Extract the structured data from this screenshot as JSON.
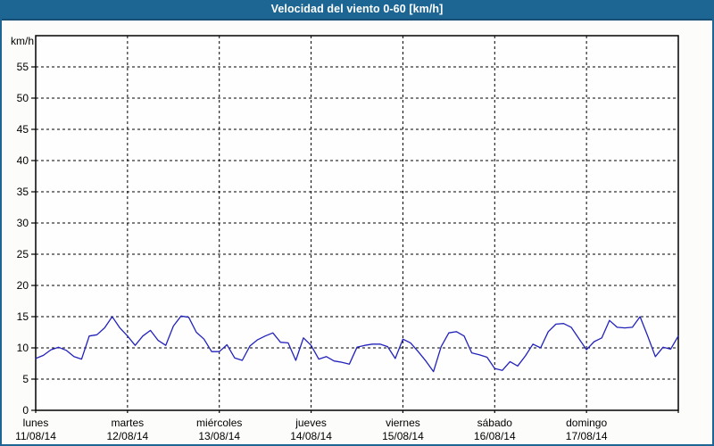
{
  "window": {
    "title": "Velocidad del viento 0-60 [km/h]"
  },
  "colors": {
    "titlebar_bg": "#1d6694",
    "titlebar_edge": "#164e76",
    "titlebar_text": "#ffffff",
    "window_border": "#1d6694",
    "page_bg": "#fcfdfb",
    "plot_bg": "#fdfefd",
    "grid": "#000000",
    "axis": "#000000",
    "text": "#000000",
    "series_line": "#2222bb"
  },
  "chart_data": {
    "type": "line",
    "title": "Velocidad del viento 0-60 [km/h]",
    "ylabel": "km/h",
    "ylim": [
      0,
      60
    ],
    "ytick_step": 5,
    "grid_style": "dashed",
    "legend": "none",
    "x_axis": {
      "days": [
        {
          "name": "lunes",
          "date": "11/08/14"
        },
        {
          "name": "martes",
          "date": "12/08/14"
        },
        {
          "name": "miércoles",
          "date": "13/08/14"
        },
        {
          "name": "jueves",
          "date": "14/08/14"
        },
        {
          "name": "viernes",
          "date": "15/08/14"
        },
        {
          "name": "sábado",
          "date": "16/08/14"
        },
        {
          "name": "domingo",
          "date": "17/08/14"
        }
      ]
    },
    "series": [
      {
        "name": "Velocidad del viento",
        "unit": "km/h",
        "sample_interval_hours": 2,
        "start": "lunes 11/08/14 00:00",
        "values": [
          8.3,
          8.8,
          9.7,
          10.1,
          9.6,
          8.6,
          8.2,
          11.9,
          12.1,
          13.2,
          15.0,
          13.2,
          11.9,
          10.4,
          11.9,
          12.8,
          11.2,
          10.4,
          13.5,
          15.1,
          14.9,
          12.5,
          11.4,
          9.4,
          9.4,
          10.5,
          8.4,
          8.0,
          10.3,
          11.3,
          11.9,
          12.4,
          10.9,
          10.8,
          8.0,
          11.6,
          10.4,
          8.2,
          8.6,
          7.9,
          7.7,
          7.4,
          10.1,
          10.4,
          10.6,
          10.6,
          10.2,
          8.3,
          11.4,
          10.8,
          9.4,
          7.9,
          6.2,
          10.2,
          12.4,
          12.6,
          11.9,
          9.2,
          8.9,
          8.5,
          6.7,
          6.4,
          7.8,
          7.1,
          8.7,
          10.6,
          10.0,
          12.6,
          13.8,
          13.9,
          13.3,
          11.5,
          9.7,
          11.0,
          11.6,
          14.4,
          13.3,
          13.2,
          13.3,
          15.0,
          11.9,
          8.6,
          10.1,
          9.8,
          11.9
        ]
      }
    ]
  }
}
